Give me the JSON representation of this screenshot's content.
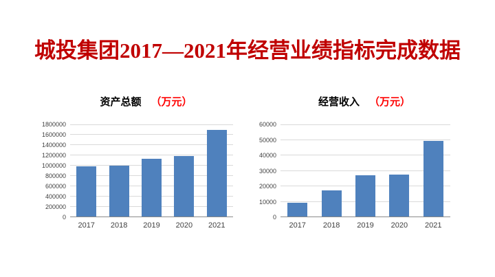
{
  "slide": {
    "title": "城投集团2017—2021年经营业绩指标完成数据",
    "title_color": "#C00000",
    "background_color": "#FFFFFF"
  },
  "chart_data": [
    {
      "type": "bar",
      "title": "资产总额",
      "unit_label": "（万元）",
      "unit_color": "#FF0000",
      "categories": [
        "2017",
        "2018",
        "2019",
        "2020",
        "2021"
      ],
      "values": [
        990000,
        995000,
        1130000,
        1190000,
        1690000
      ],
      "ylim": [
        0,
        1800000
      ],
      "ytick_step": 200000,
      "ytick_labels": [
        "0",
        "200000",
        "400000",
        "600000",
        "800000",
        "1000000",
        "1200000",
        "1400000",
        "1600000",
        "1800000"
      ],
      "grid": true,
      "legend": "none",
      "bar_color": "#4F81BD",
      "gridline_color": "#D9D9D9",
      "axis_line_color": "#898989",
      "tick_label_color": "#404040"
    },
    {
      "type": "bar",
      "title": "经营收入",
      "unit_label": "（万元）",
      "unit_color": "#FF0000",
      "categories": [
        "2017",
        "2018",
        "2019",
        "2020",
        "2021"
      ],
      "values": [
        9500,
        17500,
        27000,
        27500,
        49500
      ],
      "ylim": [
        0,
        60000
      ],
      "ytick_step": 10000,
      "ytick_labels": [
        "0",
        "10000",
        "20000",
        "30000",
        "40000",
        "50000",
        "60000"
      ],
      "grid": true,
      "legend": "none",
      "bar_color": "#4F81BD",
      "gridline_color": "#D9D9D9",
      "axis_line_color": "#898989",
      "tick_label_color": "#404040"
    }
  ]
}
